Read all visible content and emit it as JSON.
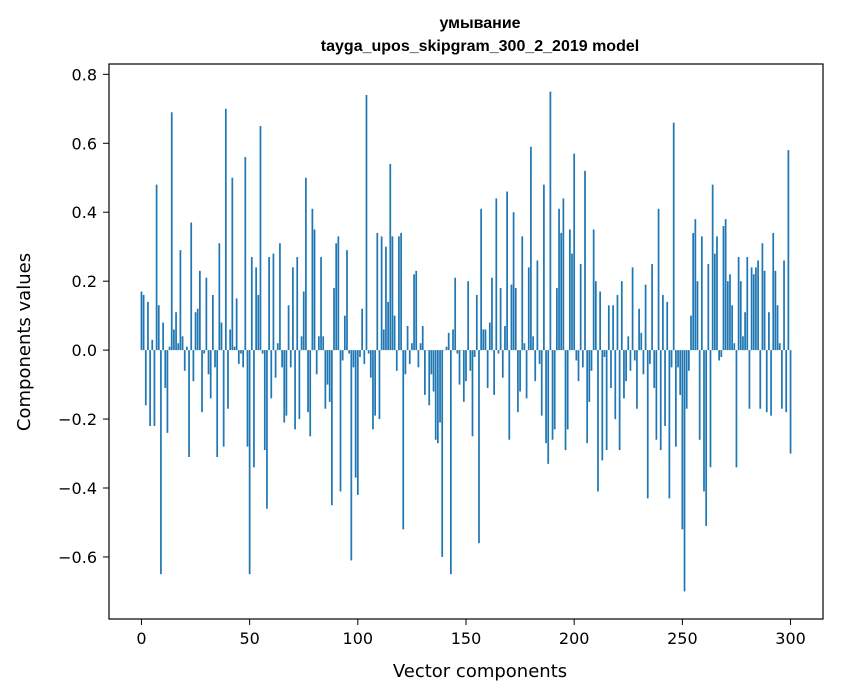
{
  "chart_data": {
    "type": "bar",
    "title": "умывание",
    "subtitle": "tayga_upos_skipgram_300_2_2019 model",
    "xlabel": "Vector components",
    "ylabel": "Components values",
    "xlim": [
      -15,
      315
    ],
    "ylim": [
      -0.78,
      0.83
    ],
    "xticks": [
      0,
      50,
      100,
      150,
      200,
      250,
      300
    ],
    "yticks": [
      -0.6,
      -0.4,
      -0.2,
      0.0,
      0.2,
      0.4,
      0.6,
      0.8
    ],
    "ytick_labels": [
      "−0.6",
      "−0.4",
      "−0.2",
      "0.0",
      "0.2",
      "0.4",
      "0.6",
      "0.8"
    ],
    "color": "#1f77b4",
    "values": [
      0.17,
      0.16,
      -0.16,
      0.14,
      -0.22,
      0.03,
      -0.22,
      0.48,
      0.13,
      -0.65,
      0.08,
      -0.11,
      -0.24,
      0.01,
      0.69,
      0.06,
      0.11,
      0.02,
      0.29,
      0.04,
      -0.06,
      0.01,
      -0.31,
      0.37,
      -0.09,
      0.11,
      0.12,
      0.23,
      -0.18,
      -0.01,
      0.21,
      -0.07,
      -0.14,
      0.16,
      -0.05,
      -0.31,
      0.31,
      0.08,
      -0.28,
      0.7,
      -0.17,
      0.06,
      0.5,
      0.01,
      0.15,
      -0.04,
      -0.01,
      -0.05,
      0.56,
      -0.28,
      -0.65,
      0.27,
      -0.34,
      0.24,
      0.16,
      0.65,
      -0.01,
      -0.29,
      -0.46,
      0.27,
      -0.14,
      0.28,
      -0.08,
      0.02,
      0.31,
      -0.05,
      -0.21,
      -0.19,
      0.13,
      -0.05,
      0.24,
      -0.23,
      0.27,
      -0.2,
      0.04,
      0.17,
      0.5,
      -0.18,
      -0.25,
      0.41,
      0.35,
      -0.07,
      0.04,
      0.27,
      0.04,
      -0.17,
      -0.1,
      -0.15,
      -0.45,
      0.18,
      0.31,
      0.33,
      -0.41,
      -0.03,
      0.1,
      0.29,
      -0.01,
      -0.61,
      -0.05,
      -0.37,
      -0.42,
      -0.02,
      0.12,
      -0.04,
      0.74,
      -0.01,
      -0.08,
      -0.23,
      -0.19,
      0.34,
      -0.2,
      0.33,
      0.06,
      0.3,
      0.14,
      0.54,
      0.33,
      0.1,
      -0.06,
      0.33,
      0.34,
      -0.52,
      -0.07,
      0.07,
      -0.04,
      0.02,
      0.22,
      0.23,
      -0.05,
      0.02,
      0.07,
      -0.13,
      0.0,
      -0.16,
      -0.07,
      -0.12,
      -0.26,
      -0.27,
      -0.21,
      -0.6,
      0.0,
      0.01,
      0.05,
      -0.65,
      0.06,
      0.21,
      -0.01,
      -0.1,
      0.0,
      -0.15,
      -0.09,
      0.2,
      -0.06,
      -0.25,
      -0.02,
      0.16,
      -0.56,
      0.41,
      0.06,
      0.06,
      -0.11,
      0.08,
      0.21,
      -0.13,
      0.44,
      -0.01,
      0.18,
      -0.08,
      0.07,
      0.46,
      -0.26,
      0.19,
      0.4,
      0.18,
      -0.18,
      -0.12,
      0.33,
      0.02,
      -0.14,
      0.24,
      0.59,
      0.04,
      -0.09,
      0.26,
      -0.04,
      -0.19,
      0.48,
      -0.27,
      -0.33,
      0.75,
      -0.26,
      -0.23,
      0.18,
      0.41,
      0.34,
      0.44,
      -0.29,
      -0.23,
      0.35,
      0.28,
      0.57,
      -0.03,
      -0.09,
      0.25,
      -0.05,
      0.52,
      -0.27,
      -0.15,
      -0.06,
      0.35,
      0.2,
      -0.41,
      0.17,
      -0.32,
      -0.02,
      -0.29,
      0.13,
      -0.11,
      0.13,
      -0.2,
      0.16,
      -0.29,
      0.2,
      -0.14,
      -0.09,
      0.04,
      -0.06,
      0.24,
      -0.03,
      -0.17,
      0.12,
      0.05,
      -0.07,
      0.19,
      -0.43,
      -0.04,
      0.25,
      -0.11,
      -0.26,
      0.41,
      -0.29,
      0.16,
      -0.22,
      0.14,
      -0.43,
      -0.05,
      0.66,
      -0.28,
      -0.05,
      -0.13,
      -0.52,
      -0.7,
      -0.17,
      -0.06,
      0.1,
      0.34,
      0.38,
      0.2,
      -0.26,
      0.33,
      -0.41,
      -0.51,
      0.25,
      -0.34,
      0.48,
      0.28,
      0.33,
      -0.03,
      -0.02,
      0.36,
      0.38,
      0.2,
      0.22,
      0.13,
      0.02,
      -0.34,
      0.27,
      0.2,
      0.04,
      0.11,
      0.27,
      -0.17,
      0.24,
      0.22,
      0.24,
      0.26,
      -0.17,
      0.31,
      0.23,
      -0.18,
      0.11,
      -0.19,
      0.34,
      0.23,
      0.13,
      0.02,
      -0.17,
      0.26,
      -0.18,
      0.58,
      -0.3
    ]
  }
}
